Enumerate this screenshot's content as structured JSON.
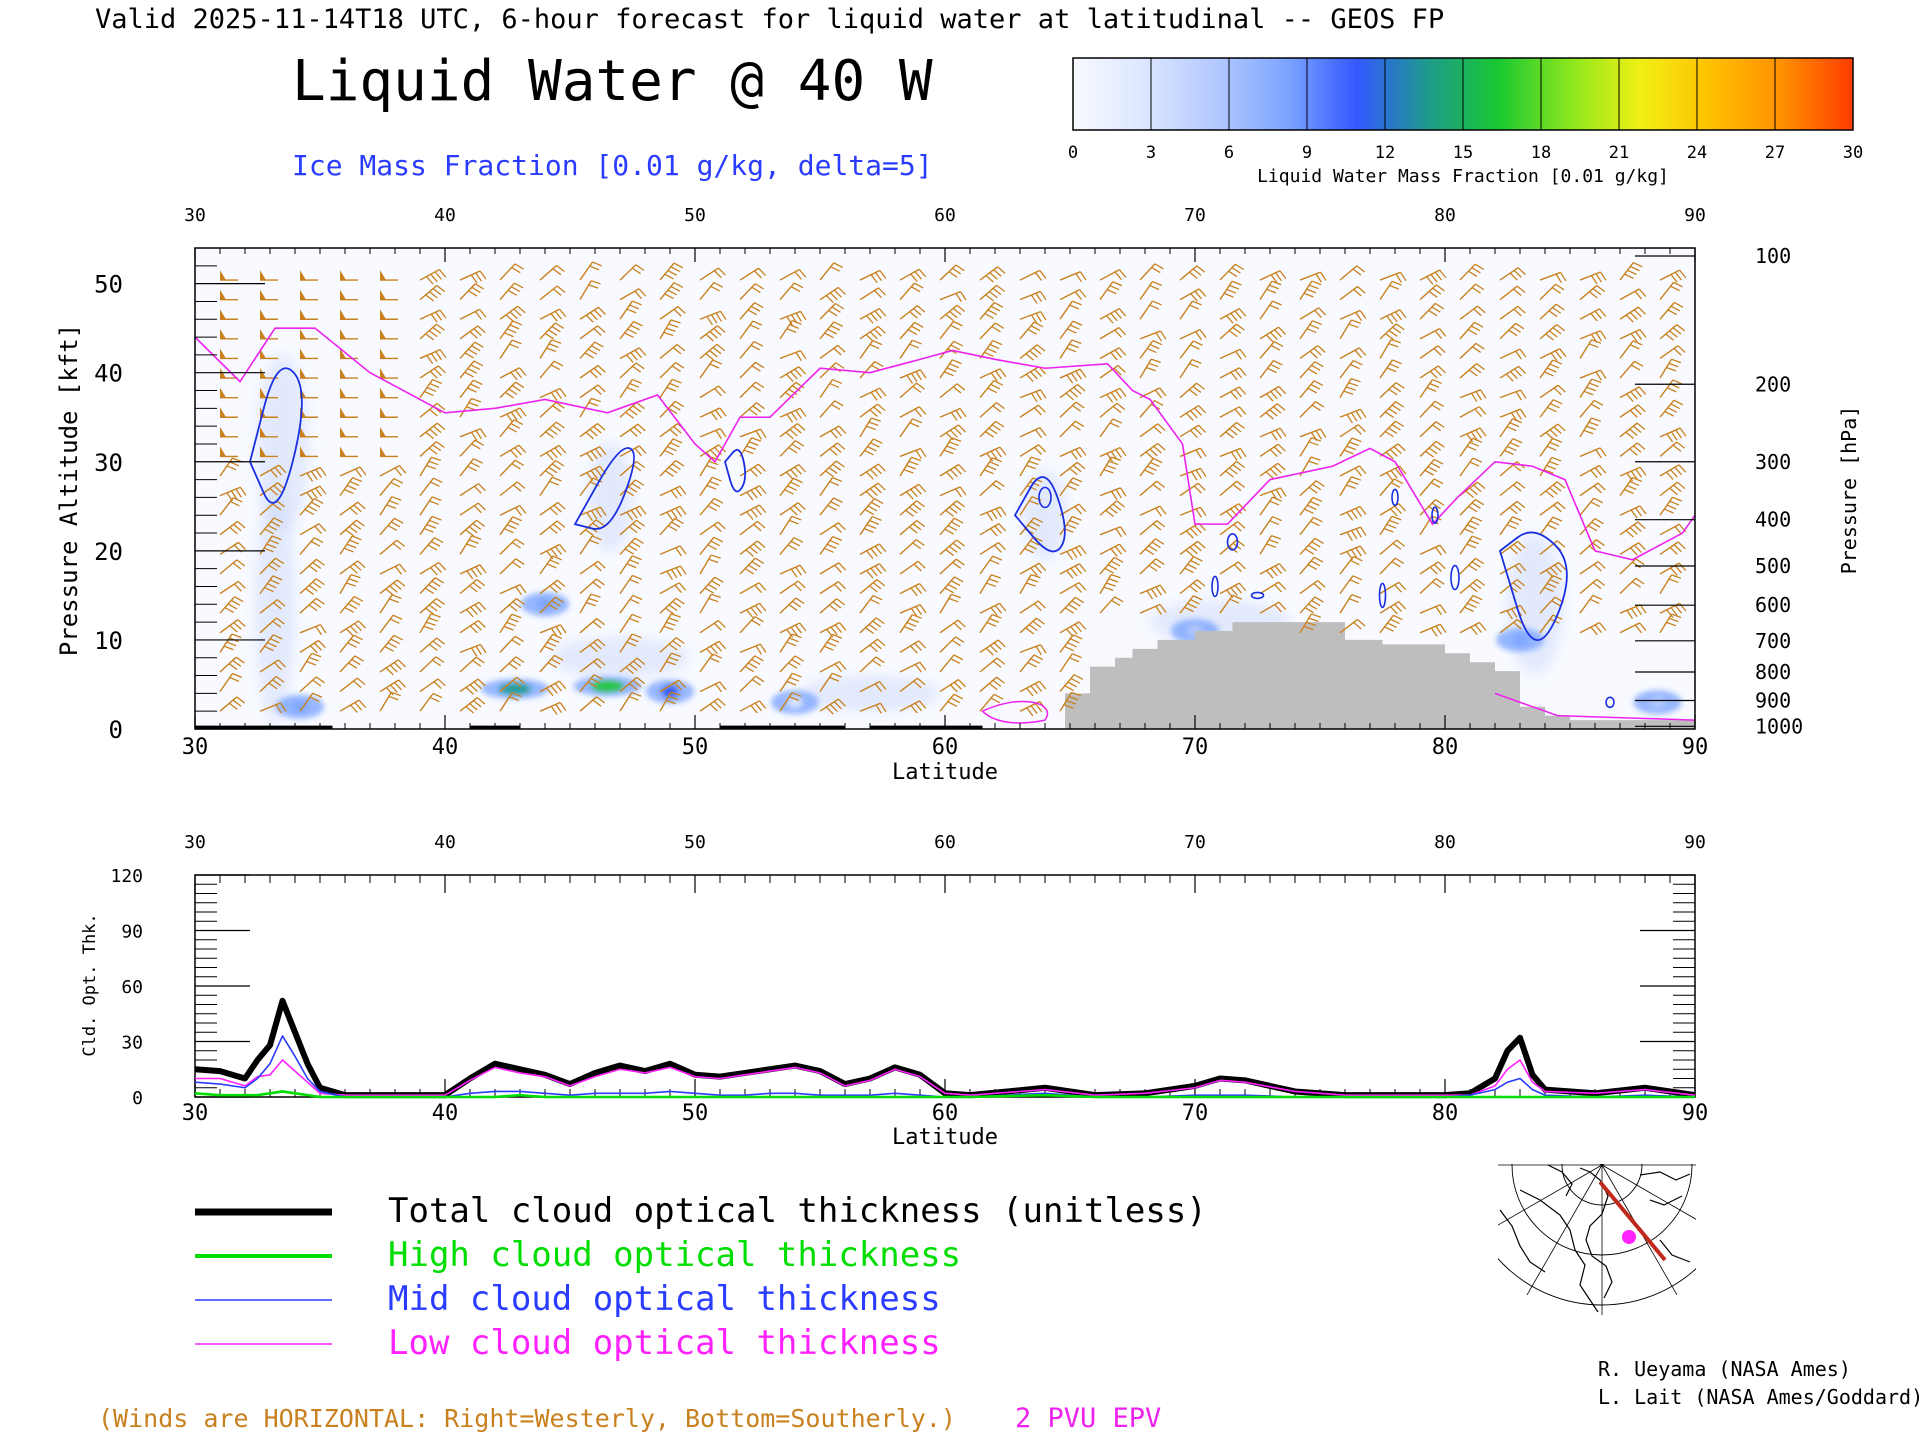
{
  "header": {
    "valid_line": "Valid 2025-11-14T18 UTC, 6-hour forecast for liquid water at latitudinal -- GEOS FP",
    "main_title": "Liquid Water @ 40 W",
    "ice_label": "Ice Mass Fraction [0.01 g/kg, delta=5]"
  },
  "colorbar": {
    "ticks": [
      "0",
      "3",
      "6",
      "9",
      "12",
      "15",
      "18",
      "21",
      "24",
      "27",
      "30"
    ],
    "label": "Liquid Water Mass Fraction [0.01 g/kg]",
    "colors": [
      "#f7f9ff",
      "#dce6ff",
      "#b3c9ff",
      "#7ea6ff",
      "#3358ff",
      "#1e9a8c",
      "#19c832",
      "#8ae61e",
      "#f0f014",
      "#ffc000",
      "#ff9000",
      "#ff3c00"
    ]
  },
  "top_panel": {
    "x_ticks": [
      "30",
      "40",
      "50",
      "60",
      "70",
      "80",
      "90"
    ],
    "xlabel": "Latitude",
    "ylabel_left": "Pressure Altitude [kft]",
    "y_ticks_left": [
      "0",
      "10",
      "20",
      "30",
      "40",
      "50"
    ],
    "ylabel_right": "Pressure [hPa]",
    "y_ticks_right": [
      "100",
      "200",
      "300",
      "400",
      "500",
      "600",
      "700",
      "800",
      "900",
      "1000"
    ]
  },
  "bottom_panel": {
    "x_ticks": [
      "30",
      "40",
      "50",
      "60",
      "70",
      "80",
      "90"
    ],
    "xlabel": "Latitude",
    "ylabel": "Cld. Opt. Thk.",
    "y_ticks": [
      "0",
      "30",
      "60",
      "90",
      "120"
    ]
  },
  "legend": {
    "items": [
      {
        "label": "Total cloud optical thickness (unitless)",
        "color": "#000000"
      },
      {
        "label": "High cloud optical thickness",
        "color": "#00dd00"
      },
      {
        "label": "Mid cloud optical thickness",
        "color": "#2a3cff"
      },
      {
        "label": "Low cloud optical thickness",
        "color": "#ff22ff"
      }
    ]
  },
  "footer": {
    "winds_note": "(Winds are HORIZONTAL: Right=Westerly, Bottom=Southerly.)",
    "epv_label": "2 PVU EPV",
    "credit1": "R. Ueyama (NASA Ames)",
    "credit2": "L. Lait (NASA Ames/Goddard)"
  },
  "colors": {
    "wind_barb": "#c8811e",
    "epv": "#ee22ee",
    "ice_contour": "#1a2fe0",
    "terrain": "#bebebe",
    "map_track": "#c0281e",
    "map_marker": "#ff22ff"
  },
  "chart_data": [
    {
      "type": "heatmap",
      "title": "Liquid Water @ 40 W",
      "xlabel": "Latitude",
      "ylabel": "Pressure Altitude [kft]",
      "xlim": [
        30,
        90
      ],
      "ylim": [
        0,
        54
      ],
      "grid": false,
      "liquid_water_patches": [
        {
          "lat": 42.8,
          "alt_kft": 4.5,
          "value": 14
        },
        {
          "lat": 46.5,
          "alt_kft": 4.8,
          "value": 15
        },
        {
          "lat": 49.0,
          "alt_kft": 4.2,
          "value": 11
        },
        {
          "lat": 44.0,
          "alt_kft": 14,
          "value": 7
        },
        {
          "lat": 34.2,
          "alt_kft": 2.5,
          "value": 9
        },
        {
          "lat": 83.0,
          "alt_kft": 10,
          "value": 7
        },
        {
          "lat": 54.0,
          "alt_kft": 3,
          "value": 4
        },
        {
          "lat": 70.0,
          "alt_kft": 11,
          "value": 5
        },
        {
          "lat": 88.5,
          "alt_kft": 3,
          "value": 5
        }
      ],
      "epv_2pvu_line": {
        "lat": [
          30,
          31.8,
          33.2,
          34.8,
          37,
          40,
          42,
          44,
          46.5,
          48.5,
          50,
          50.8,
          51.8,
          53,
          55,
          57,
          59,
          60.3,
          62,
          64,
          66.5,
          67.5,
          68.2,
          69.5,
          70,
          71.3,
          73,
          75.5,
          77,
          78,
          79.5,
          80.5,
          82,
          83.5,
          84.8,
          86,
          87.5,
          89.5,
          90
        ],
        "alt_kft": [
          44,
          39,
          45,
          45,
          40,
          35.5,
          36,
          37,
          35.5,
          37.5,
          32,
          30,
          35,
          35,
          40.5,
          40,
          41.5,
          42.5,
          41.5,
          40.5,
          41,
          38,
          37,
          32,
          23,
          23,
          28,
          29.5,
          31.5,
          30,
          23,
          26,
          30,
          29.5,
          28,
          20,
          19,
          22,
          24
        ]
      },
      "terrain_kft": {
        "lat": [
          64.8,
          65.8,
          66.8,
          67.5,
          68.5,
          70.0,
          71.5,
          76.0,
          77.5,
          80.0,
          81.0,
          82.0,
          83.0,
          84.0,
          85.0,
          90.0
        ],
        "alt_kft": [
          4,
          7,
          8,
          9,
          10,
          11,
          12,
          10,
          9.5,
          8.5,
          7.5,
          6.5,
          2.5,
          1.5,
          1,
          0
        ]
      },
      "ice_contours_5": [
        {
          "lat": [
            32.2,
            33.3,
            34.6,
            33.3
          ],
          "alt_kft": [
            30,
            42,
            38,
            23
          ]
        },
        {
          "lat": [
            45.2,
            47.0,
            47.8,
            46.6
          ],
          "alt_kft": [
            23,
            32,
            31,
            22
          ]
        },
        {
          "lat": [
            51.2,
            51.8,
            52.1,
            51.6
          ],
          "alt_kft": [
            30,
            32,
            28,
            26
          ]
        },
        {
          "lat": [
            62.8,
            64.0,
            65.0,
            64.3
          ],
          "alt_kft": [
            24,
            30,
            22,
            19
          ]
        },
        {
          "lat": [
            82.2,
            83.6,
            85.3,
            83.6
          ],
          "alt_kft": [
            20,
            23,
            18,
            7
          ]
        }
      ]
    },
    {
      "type": "line",
      "xlabel": "Latitude",
      "ylabel": "Cld. Opt. Thk.",
      "xlim": [
        30,
        90
      ],
      "ylim": [
        0,
        120
      ],
      "legend": "below",
      "x": [
        30,
        31,
        32,
        32.5,
        33,
        33.5,
        34,
        34.5,
        35,
        36,
        40,
        41,
        42,
        43,
        44,
        45,
        46,
        47,
        48,
        49,
        50,
        51,
        52,
        53,
        54,
        55,
        56,
        57,
        58,
        59,
        60,
        61,
        64,
        66,
        68,
        70,
        71,
        72,
        74,
        76,
        78,
        80,
        81,
        82,
        82.5,
        83,
        83.5,
        84,
        86,
        88,
        90
      ],
      "series": [
        {
          "name": "Total cloud optical thickness (unitless)",
          "values": [
            15,
            14,
            10,
            20,
            28,
            52,
            35,
            18,
            5,
            1,
            1,
            10,
            18,
            15,
            12,
            7,
            13,
            17,
            14,
            18,
            12,
            11,
            13,
            15,
            17,
            14,
            7,
            10,
            16,
            12,
            2,
            1,
            5,
            1,
            2,
            6,
            10,
            9,
            3,
            1,
            1,
            1,
            2,
            10,
            25,
            32,
            12,
            4,
            2,
            5,
            1
          ]
        },
        {
          "name": "High cloud optical thickness",
          "values": [
            2,
            1,
            1,
            1,
            2,
            3,
            2,
            1,
            0,
            0,
            0,
            0,
            0,
            1,
            0,
            0,
            0,
            0,
            0,
            0,
            0,
            0,
            0,
            0,
            0,
            0,
            0,
            0,
            0,
            0,
            0,
            0,
            1,
            0,
            0,
            0,
            0,
            0,
            0,
            0,
            0,
            0,
            0,
            0,
            0,
            0,
            0,
            0,
            0,
            0,
            0
          ]
        },
        {
          "name": "Mid cloud optical thickness",
          "values": [
            8,
            7,
            5,
            10,
            18,
            33,
            22,
            10,
            3,
            0,
            0,
            2,
            3,
            3,
            2,
            1,
            2,
            2,
            2,
            3,
            2,
            1,
            1,
            2,
            2,
            1,
            1,
            1,
            2,
            1,
            0,
            0,
            2,
            0,
            0,
            1,
            1,
            1,
            0,
            0,
            0,
            0,
            1,
            4,
            8,
            10,
            4,
            1,
            0,
            1,
            0
          ]
        },
        {
          "name": "Low cloud optical thickness",
          "values": [
            10,
            10,
            6,
            11,
            12,
            20,
            14,
            8,
            2,
            1,
            1,
            9,
            16,
            13,
            11,
            6,
            11,
            15,
            13,
            16,
            11,
            10,
            12,
            14,
            16,
            13,
            6,
            9,
            15,
            11,
            2,
            1,
            4,
            1,
            2,
            5,
            9,
            8,
            3,
            1,
            1,
            1,
            1,
            6,
            15,
            20,
            8,
            3,
            2,
            4,
            1
          ]
        }
      ]
    }
  ]
}
